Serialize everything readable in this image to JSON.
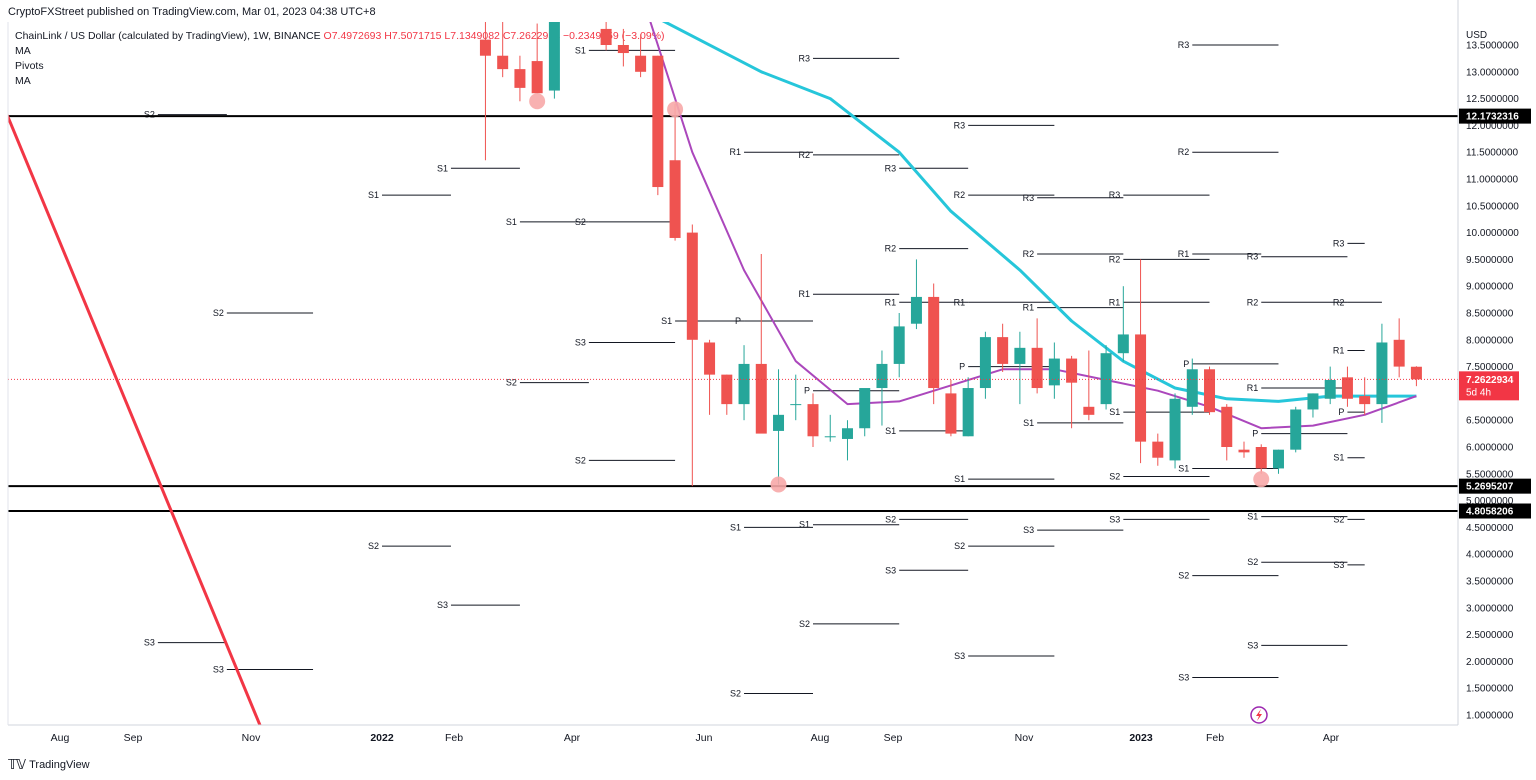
{
  "header": {
    "published": "CryptoFXStreet published on TradingView.com, Mar 01, 2023 04:38 UTC+8"
  },
  "legend": {
    "symbol": "ChainLink / US Dollar (calculated by TradingView), 1W, BINANCE",
    "ohlc": {
      "o": "O7.4972693",
      "h": "H7.5071715",
      "l": "L7.1349082",
      "c": "C7.2622934",
      "chg": "−0.2349759 (−3.09%)"
    },
    "indicators": [
      "MA",
      "Pivots",
      "MA"
    ]
  },
  "footer": {
    "brand": "TradingView"
  },
  "chart_data": {
    "type": "candlestick",
    "currency": "USD",
    "y_scale": "linear",
    "ylim": [
      0.75,
      13.9
    ],
    "grid": false,
    "x_axis": [
      "Aug",
      "Sep",
      "Nov",
      "2022",
      "Feb",
      "Apr",
      "Jun",
      "Aug",
      "Sep",
      "Nov",
      "2023",
      "Feb",
      "Apr"
    ],
    "y_ticks": [
      "1.0000000",
      "1.5000000",
      "2.0000000",
      "2.5000000",
      "3.0000000",
      "3.5000000",
      "4.0000000",
      "4.5000000",
      "5.0000000",
      "5.5000000",
      "6.0000000",
      "6.5000000",
      "7.0000000",
      "7.5000000",
      "8.0000000",
      "8.5000000",
      "9.0000000",
      "9.5000000",
      "10.0000000",
      "10.5000000",
      "11.0000000",
      "11.5000000",
      "12.0000000",
      "12.5000000",
      "13.0000000",
      "13.5000000"
    ],
    "horizontal_levels": [
      {
        "value": 12.1732316,
        "label": "12.1732316"
      },
      {
        "value": 5.2695207,
        "label": "5.2695207"
      },
      {
        "value": 4.8058206,
        "label": "4.8058206"
      }
    ],
    "last_price": {
      "value": 7.2622934,
      "label": "7.2622934",
      "countdown": "5d 4h",
      "color": "#f23645"
    },
    "colors": {
      "up": "#26a69a",
      "down": "#ef5350",
      "ma_fast": "#ab47bc",
      "ma_slow": "#26c6da",
      "trendline": "#f23645"
    },
    "candles": [
      {
        "t": "2022-02-14",
        "o": 13.6,
        "h": 15.0,
        "l": 11.35,
        "c": 13.3
      },
      {
        "t": "2022-02-21",
        "o": 13.3,
        "h": 14.4,
        "l": 12.9,
        "c": 13.05
      },
      {
        "t": "2022-02-28",
        "o": 13.05,
        "h": 13.3,
        "l": 12.45,
        "c": 12.7
      },
      {
        "t": "2022-03-07",
        "o": 13.2,
        "h": 13.9,
        "l": 12.6,
        "c": 12.6
      },
      {
        "t": "2022-03-14",
        "o": 12.65,
        "h": 14.4,
        "l": 12.5,
        "c": 14.4
      },
      {
        "t": "2022-04-04",
        "o": 13.8,
        "h": 14.3,
        "l": 13.4,
        "c": 13.5
      },
      {
        "t": "2022-04-11",
        "o": 13.5,
        "h": 13.8,
        "l": 13.1,
        "c": 13.35
      },
      {
        "t": "2022-04-18",
        "o": 13.3,
        "h": 13.7,
        "l": 12.9,
        "c": 13.0
      },
      {
        "t": "2022-04-25",
        "o": 13.3,
        "h": 13.3,
        "l": 10.7,
        "c": 10.85
      },
      {
        "t": "2022-05-02",
        "o": 11.35,
        "h": 12.4,
        "l": 9.85,
        "c": 9.9
      },
      {
        "t": "2022-05-09",
        "o": 10.0,
        "h": 10.15,
        "l": 5.27,
        "c": 8.0
      },
      {
        "t": "2022-05-16",
        "o": 7.95,
        "h": 8.0,
        "l": 6.6,
        "c": 7.35
      },
      {
        "t": "2022-05-23",
        "o": 7.35,
        "h": 7.35,
        "l": 6.6,
        "c": 6.8
      },
      {
        "t": "2022-05-30",
        "o": 6.8,
        "h": 7.9,
        "l": 6.5,
        "c": 7.55
      },
      {
        "t": "2022-06-06",
        "o": 7.55,
        "h": 9.6,
        "l": 6.3,
        "c": 6.25
      },
      {
        "t": "2022-06-13",
        "o": 6.3,
        "h": 7.45,
        "l": 5.3,
        "c": 6.6
      },
      {
        "t": "2022-06-20",
        "o": 6.8,
        "h": 7.35,
        "l": 6.5,
        "c": 6.8
      },
      {
        "t": "2022-06-27",
        "o": 6.8,
        "h": 7.0,
        "l": 6.0,
        "c": 6.2
      },
      {
        "t": "2022-07-04",
        "o": 6.2,
        "h": 6.6,
        "l": 6.1,
        "c": 6.2
      },
      {
        "t": "2022-07-11",
        "o": 6.15,
        "h": 6.5,
        "l": 5.75,
        "c": 6.35
      },
      {
        "t": "2022-07-18",
        "o": 6.35,
        "h": 7.0,
        "l": 6.2,
        "c": 7.1
      },
      {
        "t": "2022-07-25",
        "o": 7.1,
        "h": 7.8,
        "l": 6.4,
        "c": 7.55
      },
      {
        "t": "2022-08-01",
        "o": 7.55,
        "h": 8.5,
        "l": 7.3,
        "c": 8.25
      },
      {
        "t": "2022-08-08",
        "o": 8.3,
        "h": 9.5,
        "l": 8.2,
        "c": 8.8
      },
      {
        "t": "2022-08-15",
        "o": 8.8,
        "h": 9.05,
        "l": 6.8,
        "c": 7.1
      },
      {
        "t": "2022-08-22",
        "o": 7.0,
        "h": 7.25,
        "l": 6.2,
        "c": 6.25
      },
      {
        "t": "2022-08-29",
        "o": 6.2,
        "h": 7.3,
        "l": 6.2,
        "c": 7.1
      },
      {
        "t": "2022-09-05",
        "o": 7.1,
        "h": 8.15,
        "l": 6.9,
        "c": 8.05
      },
      {
        "t": "2022-09-12",
        "o": 8.05,
        "h": 8.3,
        "l": 7.4,
        "c": 7.55
      },
      {
        "t": "2022-09-19",
        "o": 7.55,
        "h": 8.15,
        "l": 6.8,
        "c": 7.85
      },
      {
        "t": "2022-09-26",
        "o": 7.85,
        "h": 8.4,
        "l": 7.0,
        "c": 7.1
      },
      {
        "t": "2022-10-03",
        "o": 7.15,
        "h": 7.95,
        "l": 6.9,
        "c": 7.65
      },
      {
        "t": "2022-10-10",
        "o": 7.65,
        "h": 7.7,
        "l": 6.35,
        "c": 7.2
      },
      {
        "t": "2022-10-17",
        "o": 6.75,
        "h": 7.8,
        "l": 6.5,
        "c": 6.6
      },
      {
        "t": "2022-10-24",
        "o": 6.8,
        "h": 7.9,
        "l": 6.7,
        "c": 7.75
      },
      {
        "t": "2022-10-31",
        "o": 7.75,
        "h": 9.0,
        "l": 7.6,
        "c": 8.1
      },
      {
        "t": "2022-11-07",
        "o": 8.1,
        "h": 9.5,
        "l": 5.7,
        "c": 6.1
      },
      {
        "t": "2022-11-14",
        "o": 6.1,
        "h": 6.25,
        "l": 5.65,
        "c": 5.8
      },
      {
        "t": "2022-11-21",
        "o": 5.75,
        "h": 7.0,
        "l": 5.6,
        "c": 6.9
      },
      {
        "t": "2022-11-28",
        "o": 6.75,
        "h": 7.65,
        "l": 6.6,
        "c": 7.45
      },
      {
        "t": "2022-12-05",
        "o": 7.45,
        "h": 7.5,
        "l": 6.6,
        "c": 6.65
      },
      {
        "t": "2022-12-12",
        "o": 6.75,
        "h": 6.8,
        "l": 5.75,
        "c": 6.0
      },
      {
        "t": "2022-12-19",
        "o": 5.95,
        "h": 6.1,
        "l": 5.8,
        "c": 5.9
      },
      {
        "t": "2022-12-26",
        "o": 6.0,
        "h": 6.05,
        "l": 5.5,
        "c": 5.6
      },
      {
        "t": "2023-01-02",
        "o": 5.6,
        "h": 5.95,
        "l": 5.5,
        "c": 5.95
      },
      {
        "t": "2023-01-09",
        "o": 5.95,
        "h": 6.75,
        "l": 5.9,
        "c": 6.7
      },
      {
        "t": "2023-01-16",
        "o": 6.7,
        "h": 7.0,
        "l": 6.55,
        "c": 7.0
      },
      {
        "t": "2023-01-23",
        "o": 6.9,
        "h": 7.5,
        "l": 6.8,
        "c": 7.25
      },
      {
        "t": "2023-01-30",
        "o": 7.3,
        "h": 7.5,
        "l": 6.75,
        "c": 6.9
      },
      {
        "t": "2023-02-06",
        "o": 6.95,
        "h": 7.3,
        "l": 6.6,
        "c": 6.8
      },
      {
        "t": "2023-02-13",
        "o": 6.8,
        "h": 8.3,
        "l": 6.45,
        "c": 7.95
      },
      {
        "t": "2023-02-20",
        "o": 8.0,
        "h": 8.4,
        "l": 7.3,
        "c": 7.5
      },
      {
        "t": "2023-02-27",
        "o": 7.4972693,
        "h": 7.5071715,
        "l": 7.1349082,
        "c": 7.2622934
      }
    ],
    "ma_fast": [
      {
        "t": "2022-04-18",
        "v": 14.5
      },
      {
        "t": "2022-05-09",
        "v": 11.5
      },
      {
        "t": "2022-05-30",
        "v": 9.3
      },
      {
        "t": "2022-06-20",
        "v": 7.6
      },
      {
        "t": "2022-07-11",
        "v": 6.8
      },
      {
        "t": "2022-08-01",
        "v": 6.85
      },
      {
        "t": "2022-08-22",
        "v": 7.15
      },
      {
        "t": "2022-09-12",
        "v": 7.45
      },
      {
        "t": "2022-10-03",
        "v": 7.45
      },
      {
        "t": "2022-10-24",
        "v": 7.25
      },
      {
        "t": "2022-11-14",
        "v": 7.05
      },
      {
        "t": "2022-12-05",
        "v": 6.75
      },
      {
        "t": "2022-12-26",
        "v": 6.35
      },
      {
        "t": "2023-01-16",
        "v": 6.4
      },
      {
        "t": "2023-02-06",
        "v": 6.6
      },
      {
        "t": "2023-02-27",
        "v": 6.95
      }
    ],
    "ma_slow": [
      {
        "t": "2022-04-25",
        "v": 14.0
      },
      {
        "t": "2022-06-06",
        "v": 13.0
      },
      {
        "t": "2022-07-04",
        "v": 12.5
      },
      {
        "t": "2022-08-01",
        "v": 11.5
      },
      {
        "t": "2022-08-22",
        "v": 10.4
      },
      {
        "t": "2022-09-19",
        "v": 9.3
      },
      {
        "t": "2022-10-10",
        "v": 8.35
      },
      {
        "t": "2022-10-31",
        "v": 7.6
      },
      {
        "t": "2022-11-21",
        "v": 7.1
      },
      {
        "t": "2022-12-12",
        "v": 6.9
      },
      {
        "t": "2023-01-02",
        "v": 6.85
      },
      {
        "t": "2023-01-23",
        "v": 6.95
      },
      {
        "t": "2023-02-27",
        "v": 6.95
      }
    ],
    "trendline": [
      {
        "t": "2021-07-05",
        "v": 15.5
      },
      {
        "t": "2021-11-15",
        "v": 0.75
      }
    ],
    "markers": [
      {
        "t": "2022-03-07",
        "v": 12.45
      },
      {
        "t": "2022-05-02",
        "v": 12.3
      },
      {
        "t": "2022-06-13",
        "v": 5.3
      },
      {
        "t": "2022-12-26",
        "v": 5.4
      }
    ],
    "pivots": [
      {
        "label": "S2",
        "t0": "2021-10-04",
        "t1": "2021-11-01",
        "v": 12.2
      },
      {
        "label": "S3",
        "t0": "2021-10-04",
        "t1": "2021-11-01",
        "v": 2.35
      },
      {
        "label": "S2",
        "t0": "2021-11-01",
        "t1": "2021-12-06",
        "v": 8.5
      },
      {
        "label": "S3",
        "t0": "2021-11-01",
        "t1": "2021-12-06",
        "v": 1.85
      },
      {
        "label": "S1",
        "t0": "2022-01-03",
        "t1": "2022-01-31",
        "v": 10.7
      },
      {
        "label": "S2",
        "t0": "2022-01-03",
        "t1": "2022-01-31",
        "v": 4.15
      },
      {
        "label": "S1",
        "t0": "2022-01-31",
        "t1": "2022-02-28",
        "v": 11.2
      },
      {
        "label": "S3",
        "t0": "2022-01-31",
        "t1": "2022-02-28",
        "v": 3.05
      },
      {
        "label": "S1",
        "t0": "2022-02-28",
        "t1": "2022-03-28",
        "v": 10.2
      },
      {
        "label": "S2",
        "t0": "2022-02-28",
        "t1": "2022-03-28",
        "v": 7.2
      },
      {
        "label": "S1",
        "t0": "2022-03-28",
        "t1": "2022-05-02",
        "v": 13.4
      },
      {
        "label": "S2",
        "t0": "2022-03-28",
        "t1": "2022-05-02",
        "v": 10.2
      },
      {
        "label": "S3",
        "t0": "2022-03-28",
        "t1": "2022-05-02",
        "v": 7.95
      },
      {
        "label": "S2",
        "t0": "2022-03-28",
        "t1": "2022-05-02",
        "v": 5.75
      },
      {
        "label": "S1",
        "t0": "2022-05-02",
        "t1": "2022-05-30",
        "v": 8.35
      },
      {
        "label": "P",
        "t0": "2022-05-30",
        "t1": "2022-06-27",
        "v": 8.35
      },
      {
        "label": "R1",
        "t0": "2022-05-30",
        "t1": "2022-06-27",
        "v": 11.5
      },
      {
        "label": "S1",
        "t0": "2022-05-30",
        "t1": "2022-06-27",
        "v": 4.5
      },
      {
        "label": "S2",
        "t0": "2022-05-30",
        "t1": "2022-06-27",
        "v": 1.4
      },
      {
        "label": "R2",
        "t0": "2022-06-27",
        "t1": "2022-08-01",
        "v": 11.45
      },
      {
        "label": "R3",
        "t0": "2022-06-27",
        "t1": "2022-08-01",
        "v": 13.25
      },
      {
        "label": "R1",
        "t0": "2022-06-27",
        "t1": "2022-08-01",
        "v": 8.85
      },
      {
        "label": "P",
        "t0": "2022-06-27",
        "t1": "2022-08-01",
        "v": 7.05
      },
      {
        "label": "S1",
        "t0": "2022-06-27",
        "t1": "2022-08-01",
        "v": 4.55
      },
      {
        "label": "S2",
        "t0": "2022-06-27",
        "t1": "2022-08-01",
        "v": 2.7
      },
      {
        "label": "R3",
        "t0": "2022-08-01",
        "t1": "2022-08-29",
        "v": 11.2
      },
      {
        "label": "R2",
        "t0": "2022-08-01",
        "t1": "2022-08-29",
        "v": 9.7
      },
      {
        "label": "R1",
        "t0": "2022-08-01",
        "t1": "2022-08-29",
        "v": 8.7
      },
      {
        "label": "S1",
        "t0": "2022-08-01",
        "t1": "2022-08-29",
        "v": 6.3
      },
      {
        "label": "S2",
        "t0": "2022-08-01",
        "t1": "2022-08-29",
        "v": 4.65
      },
      {
        "label": "S3",
        "t0": "2022-08-01",
        "t1": "2022-08-29",
        "v": 3.7
      },
      {
        "label": "R3",
        "t0": "2022-08-29",
        "t1": "2022-10-03",
        "v": 12.0
      },
      {
        "label": "R2",
        "t0": "2022-08-29",
        "t1": "2022-10-03",
        "v": 10.7
      },
      {
        "label": "R1",
        "t0": "2022-08-29",
        "t1": "2022-10-03",
        "v": 8.7
      },
      {
        "label": "P",
        "t0": "2022-08-29",
        "t1": "2022-10-03",
        "v": 7.5
      },
      {
        "label": "S1",
        "t0": "2022-08-29",
        "t1": "2022-10-03",
        "v": 5.4
      },
      {
        "label": "S2",
        "t0": "2022-08-29",
        "t1": "2022-10-03",
        "v": 4.15
      },
      {
        "label": "S3",
        "t0": "2022-08-29",
        "t1": "2022-10-03",
        "v": 2.1
      },
      {
        "label": "R3",
        "t0": "2022-09-26",
        "t1": "2022-10-31",
        "v": 10.65
      },
      {
        "label": "R2",
        "t0": "2022-09-26",
        "t1": "2022-10-31",
        "v": 9.6
      },
      {
        "label": "R1",
        "t0": "2022-09-26",
        "t1": "2022-10-31",
        "v": 8.6
      },
      {
        "label": "S1",
        "t0": "2022-09-26",
        "t1": "2022-10-31",
        "v": 6.45
      },
      {
        "label": "S3",
        "t0": "2022-09-26",
        "t1": "2022-10-31",
        "v": 4.45
      },
      {
        "label": "R3",
        "t0": "2022-10-31",
        "t1": "2022-12-05",
        "v": 10.7
      },
      {
        "label": "R2",
        "t0": "2022-10-31",
        "t1": "2022-12-05",
        "v": 9.5
      },
      {
        "label": "R1",
        "t0": "2022-10-31",
        "t1": "2022-12-05",
        "v": 8.7
      },
      {
        "label": "S1",
        "t0": "2022-10-31",
        "t1": "2022-12-05",
        "v": 6.65
      },
      {
        "label": "S2",
        "t0": "2022-10-31",
        "t1": "2022-12-05",
        "v": 5.45
      },
      {
        "label": "S3",
        "t0": "2022-10-31",
        "t1": "2022-12-05",
        "v": 4.65
      },
      {
        "label": "P",
        "t0": "2022-11-28",
        "t1": "2023-01-02",
        "v": 7.55
      },
      {
        "label": "R1",
        "t0": "2022-11-28",
        "t1": "2022-12-26",
        "v": 9.6
      },
      {
        "label": "S1",
        "t0": "2022-11-28",
        "t1": "2023-01-02",
        "v": 5.6
      },
      {
        "label": "R3",
        "t0": "2022-11-28",
        "t1": "2023-01-02",
        "v": 13.5
      },
      {
        "label": "R2",
        "t0": "2022-11-28",
        "t1": "2023-01-02",
        "v": 11.5
      },
      {
        "label": "S2",
        "t0": "2022-11-28",
        "t1": "2023-01-02",
        "v": 3.6
      },
      {
        "label": "S3",
        "t0": "2022-11-28",
        "t1": "2023-01-02",
        "v": 1.7
      },
      {
        "label": "R1",
        "t0": "2022-12-26",
        "t1": "2023-01-30",
        "v": 7.1
      },
      {
        "label": "P",
        "t0": "2022-12-26",
        "t1": "2023-01-30",
        "v": 6.25
      },
      {
        "label": "R3",
        "t0": "2022-12-26",
        "t1": "2023-01-30",
        "v": 9.55
      },
      {
        "label": "R2",
        "t0": "2022-12-26",
        "t1": "2023-01-30",
        "v": 8.7
      },
      {
        "label": "S1",
        "t0": "2022-12-26",
        "t1": "2023-01-30",
        "v": 4.7
      },
      {
        "label": "S2",
        "t0": "2022-12-26",
        "t1": "2023-01-30",
        "v": 3.85
      },
      {
        "label": "S3",
        "t0": "2022-12-26",
        "t1": "2023-01-30",
        "v": 2.3
      },
      {
        "label": "R3",
        "t0": "2023-01-30",
        "t1": "2023-02-06",
        "v": 9.8
      },
      {
        "label": "R2",
        "t0": "2023-01-30",
        "t1": "2023-02-13",
        "v": 8.7
      },
      {
        "label": "R1",
        "t0": "2023-01-30",
        "t1": "2023-02-06",
        "v": 7.8
      },
      {
        "label": "P",
        "t0": "2023-01-30",
        "t1": "2023-02-06",
        "v": 6.65
      },
      {
        "label": "S1",
        "t0": "2023-01-30",
        "t1": "2023-02-06",
        "v": 5.8
      },
      {
        "label": "S2",
        "t0": "2023-01-30",
        "t1": "2023-02-06",
        "v": 4.65
      },
      {
        "label": "S3",
        "t0": "2023-01-30",
        "t1": "2023-02-06",
        "v": 3.8
      }
    ]
  }
}
